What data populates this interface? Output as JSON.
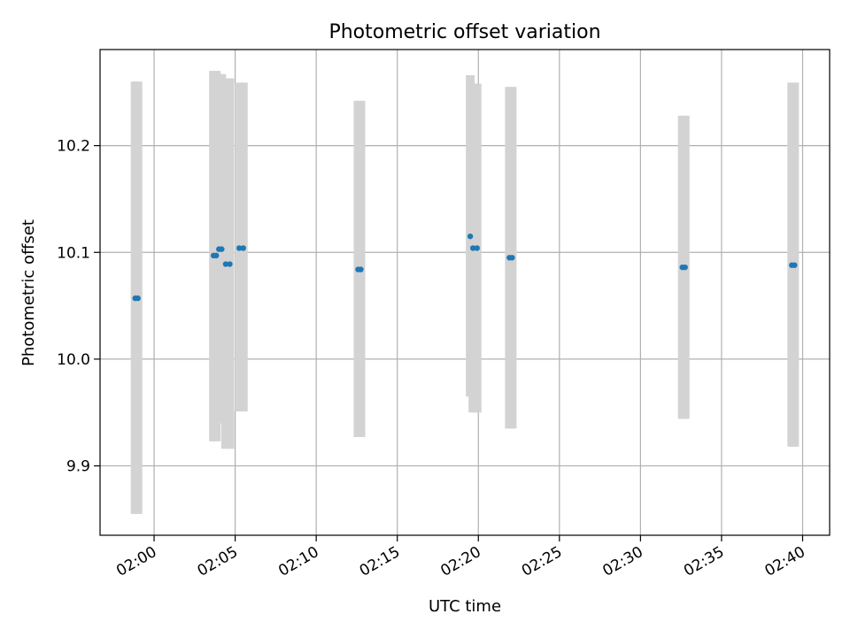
{
  "chart_data": {
    "type": "scatter",
    "title": "Photometric offset variation",
    "xlabel": "UTC time",
    "ylabel": "Photometric offset",
    "xlim": [
      "01:56:40",
      "02:41:40"
    ],
    "ylim": [
      9.835,
      10.29
    ],
    "grid": true,
    "x_ticks": [
      "02:00",
      "02:05",
      "02:10",
      "02:15",
      "02:20",
      "02:25",
      "02:30",
      "02:35",
      "02:40"
    ],
    "y_ticks": [
      9.9,
      10.0,
      10.1,
      10.2
    ],
    "y_tick_labels": [
      "9.9",
      "10.0",
      "10.1",
      "10.2"
    ],
    "colors": {
      "points": "#1f77b4",
      "error_bars": "#d3d3d3"
    },
    "series": [
      {
        "points": [
          {
            "time": "01:58:50",
            "y": 10.057,
            "yerr_low": 9.855,
            "yerr_high": 10.26
          },
          {
            "time": "01:59:00",
            "y": 10.057,
            "yerr_low": 9.855,
            "yerr_high": 10.26
          },
          {
            "time": "02:03:40",
            "y": 10.097,
            "yerr_low": 9.923,
            "yerr_high": 10.27
          },
          {
            "time": "02:03:50",
            "y": 10.097,
            "yerr_low": 9.923,
            "yerr_high": 10.27
          },
          {
            "time": "02:04:00",
            "y": 10.103,
            "yerr_low": 9.94,
            "yerr_high": 10.267
          },
          {
            "time": "02:04:10",
            "y": 10.103,
            "yerr_low": 9.94,
            "yerr_high": 10.267
          },
          {
            "time": "02:04:25",
            "y": 10.089,
            "yerr_low": 9.916,
            "yerr_high": 10.263
          },
          {
            "time": "02:04:40",
            "y": 10.089,
            "yerr_low": 9.916,
            "yerr_high": 10.263
          },
          {
            "time": "02:05:15",
            "y": 10.104,
            "yerr_low": 9.951,
            "yerr_high": 10.259
          },
          {
            "time": "02:05:30",
            "y": 10.104,
            "yerr_low": 9.951,
            "yerr_high": 10.259
          },
          {
            "time": "02:12:35",
            "y": 10.084,
            "yerr_low": 9.927,
            "yerr_high": 10.242
          },
          {
            "time": "02:12:45",
            "y": 10.084,
            "yerr_low": 9.927,
            "yerr_high": 10.242
          },
          {
            "time": "02:19:30",
            "y": 10.115,
            "yerr_low": 9.965,
            "yerr_high": 10.266
          },
          {
            "time": "02:19:40",
            "y": 10.104,
            "yerr_low": 9.95,
            "yerr_high": 10.258
          },
          {
            "time": "02:19:55",
            "y": 10.104,
            "yerr_low": 9.95,
            "yerr_high": 10.258
          },
          {
            "time": "02:21:55",
            "y": 10.095,
            "yerr_low": 9.935,
            "yerr_high": 10.255
          },
          {
            "time": "02:22:05",
            "y": 10.095,
            "yerr_low": 9.935,
            "yerr_high": 10.255
          },
          {
            "time": "02:32:35",
            "y": 10.086,
            "yerr_low": 9.944,
            "yerr_high": 10.228
          },
          {
            "time": "02:32:45",
            "y": 10.086,
            "yerr_low": 9.944,
            "yerr_high": 10.228
          },
          {
            "time": "02:39:20",
            "y": 10.088,
            "yerr_low": 9.918,
            "yerr_high": 10.259
          },
          {
            "time": "02:39:30",
            "y": 10.088,
            "yerr_low": 9.918,
            "yerr_high": 10.259
          }
        ]
      }
    ]
  }
}
